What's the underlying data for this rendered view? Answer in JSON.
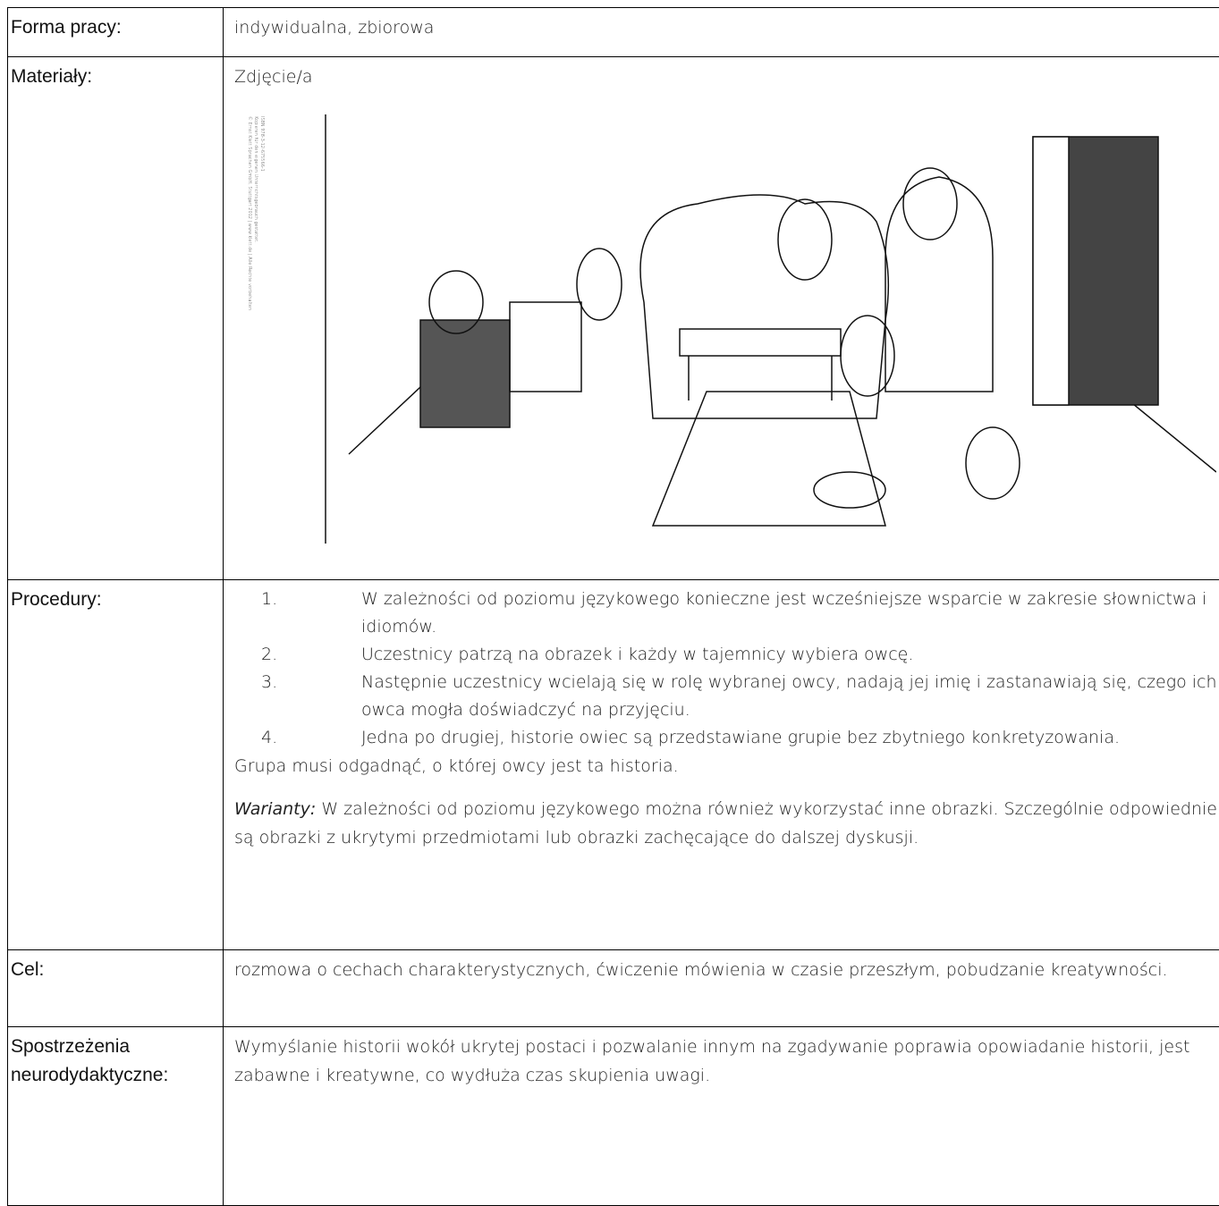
{
  "table": {
    "rows": [
      {
        "label": "Forma pracy:",
        "text": "indywidualna, zbiorowa"
      },
      {
        "label": "Materiały:",
        "text": "Zdjęcie/a",
        "image_credit": [
          "© Ernst Klett Sprachen GmbH, Stuttgart 2012 | www.klett.de | Alle Rechte vorbehalten",
          "Kopieren für den eigenen Unterrichtsgebrauch gestattet.",
          "ISBN 978-3-12-675566-1"
        ]
      },
      {
        "label": "Procedury:",
        "steps": [
          {
            "number": "1.",
            "text": "W zależności od poziomu językowego konieczne jest wcześniejsze wsparcie w zakresie słownictwa i idiomów."
          },
          {
            "number": "2.",
            "text": "Uczestnicy patrzą na obrazek i każdy w tajemnicy wybiera owcę."
          },
          {
            "number": "3.",
            "text": "Następnie uczestnicy wcielają się w rolę wybranej owcy, nadają jej imię i zastanawiają się, czego ich owca mogła doświadczyć na przyjęciu."
          },
          {
            "number": "4.",
            "text": "Jedna po drugiej, historie owiec są przedstawiane grupie bez zbytniego konkretyzowania."
          }
        ],
        "closing": "Grupa musi odgadnąć, o której owcy jest ta historia.",
        "variants_label": "Warianty:",
        "variants_text": "W zależności od poziomu językowego można również wykorzystać inne obrazki. Szczególnie odpowiednie są obrazki z ukrytymi przedmiotami lub obrazki zachęcające do dalszej dyskusji."
      },
      {
        "label": "Cel:",
        "text": "rozmowa o cechach charakterystycznych, ćwiczenie mówienia w czasie przeszłym, pobudzanie kreatywności."
      },
      {
        "label": "Spostrzeżenia neurodydaktyczne:",
        "text": "Wymyślanie historii wokół ukrytej postaci i pozwalanie innym na zgadywanie poprawia opowiadanie historii, jest zabawne i kreatywne, co wydłuża czas skupienia uwagi."
      }
    ]
  }
}
